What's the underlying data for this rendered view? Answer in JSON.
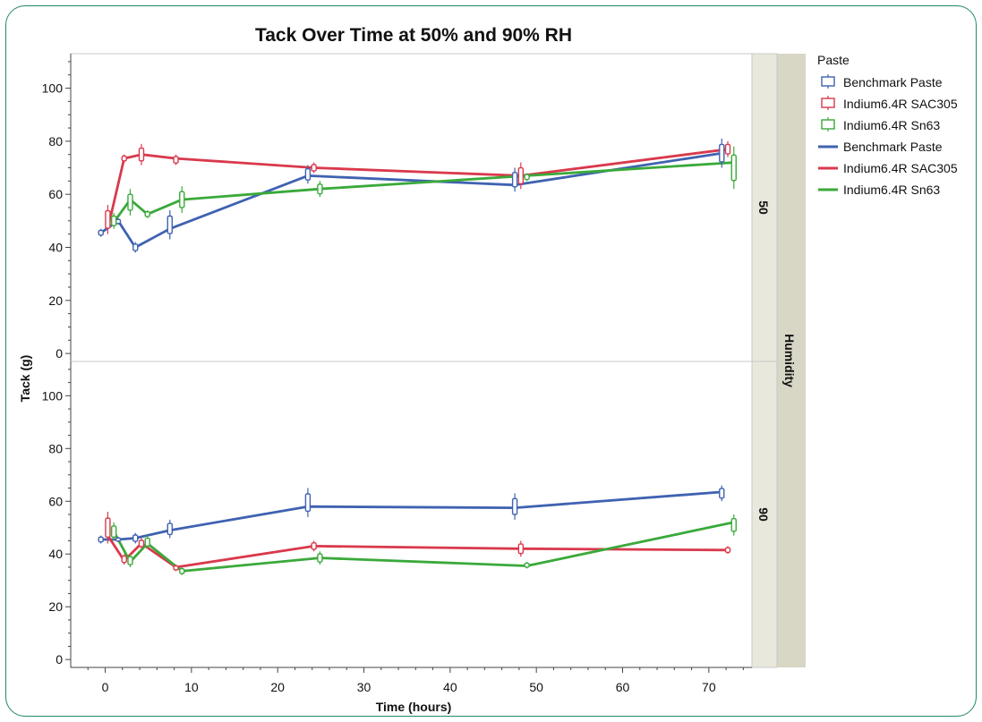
{
  "chart_data": {
    "type": "line",
    "title": "Tack Over Time at 50% and 90% RH",
    "xlabel": "Time (hours)",
    "ylabel": "Tack (g)",
    "xlim": [
      -4,
      75
    ],
    "ylim": [
      -3,
      113
    ],
    "x_ticks": [
      0,
      10,
      20,
      30,
      40,
      50,
      60,
      70
    ],
    "y_ticks": [
      0,
      20,
      40,
      60,
      80,
      100
    ],
    "facet_label": "Humidity",
    "legend": {
      "title": "Paste",
      "position": "right",
      "box_entries": [
        "Benchmark Paste",
        "Indium6.4R SAC305",
        "Indium6.4R Sn63"
      ],
      "line_entries": [
        "Benchmark Paste",
        "Indium6.4R SAC305",
        "Indium6.4R Sn63"
      ]
    },
    "colors": {
      "Benchmark Paste": "#3f62b1",
      "Indium6.4R SAC305": "#d9394c",
      "Indium6.4R Sn63": "#3aa93a"
    },
    "panels": [
      {
        "humidity": "50",
        "series": [
          {
            "name": "Benchmark Paste",
            "x": [
              -0.5,
              1.5,
              3.5,
              7.5,
              23.5,
              47.5,
              71.5
            ],
            "y": [
              45.5,
              50,
              40,
              47,
              67,
              63.5,
              75.5
            ],
            "boxes": [
              [
                -0.5,
                44,
                47
              ],
              [
                1.5,
                48.5,
                51
              ],
              [
                3.5,
                38,
                42
              ],
              [
                7.5,
                43,
                54
              ],
              [
                23.5,
                64,
                71
              ],
              [
                47.5,
                61,
                70
              ],
              [
                71.5,
                70,
                81
              ]
            ]
          },
          {
            "name": "Indium6.4R SAC305",
            "x": [
              0.3,
              2.2,
              4.2,
              8.2,
              24.2,
              48.2,
              72.2
            ],
            "y": [
              47,
              73.5,
              75,
              73.5,
              70,
              67,
              77
            ],
            "boxes": [
              [
                0.3,
                45,
                56
              ],
              [
                2.2,
                72,
                75
              ],
              [
                4.2,
                71,
                79
              ],
              [
                8.2,
                71,
                75
              ],
              [
                24.2,
                68,
                72
              ],
              [
                48.2,
                62,
                72
              ],
              [
                72.2,
                74,
                80
              ]
            ]
          },
          {
            "name": "Indium6.4R Sn63",
            "x": [
              1.0,
              2.9,
              4.9,
              8.9,
              24.9,
              48.9,
              72.9
            ],
            "y": [
              49.5,
              58,
              52.5,
              58,
              62,
              67,
              72
            ],
            "boxes": [
              [
                1.0,
                47,
                53
              ],
              [
                2.9,
                52,
                62
              ],
              [
                4.9,
                51,
                54
              ],
              [
                8.9,
                53,
                63
              ],
              [
                24.9,
                59,
                65
              ],
              [
                48.9,
                65,
                68
              ],
              [
                72.9,
                62,
                78
              ]
            ]
          }
        ]
      },
      {
        "humidity": "90",
        "series": [
          {
            "name": "Benchmark Paste",
            "x": [
              -0.5,
              1.5,
              3.5,
              7.5,
              23.5,
              47.5,
              71.5
            ],
            "y": [
              45.5,
              45.5,
              46,
              49,
              58,
              57.5,
              63.5
            ],
            "boxes": [
              [
                -0.5,
                44,
                47
              ],
              [
                1.5,
                44.5,
                46.5
              ],
              [
                3.5,
                44,
                48
              ],
              [
                7.5,
                46,
                53
              ],
              [
                23.5,
                54,
                65
              ],
              [
                47.5,
                53,
                63
              ],
              [
                71.5,
                60,
                66
              ]
            ]
          },
          {
            "name": "Indium6.4R SAC305",
            "x": [
              0.3,
              2.2,
              4.2,
              8.2,
              24.2,
              48.2,
              72.2
            ],
            "y": [
              47,
              37.5,
              44,
              35,
              43,
              42,
              41.5
            ],
            "boxes": [
              [
                0.3,
                44,
                56
              ],
              [
                2.2,
                36,
                40
              ],
              [
                4.2,
                42,
                46
              ],
              [
                8.2,
                33.5,
                36
              ],
              [
                24.2,
                41,
                45
              ],
              [
                48.2,
                39,
                45
              ],
              [
                72.2,
                40,
                43
              ]
            ]
          },
          {
            "name": "Indium6.4R Sn63",
            "x": [
              1.0,
              2.9,
              4.9,
              8.9,
              24.9,
              48.9,
              72.9
            ],
            "y": [
              48.5,
              37,
              44,
              33.5,
              38.5,
              35.5,
              52
            ],
            "boxes": [
              [
                1.0,
                45,
                52
              ],
              [
                2.9,
                35,
                40
              ],
              [
                4.9,
                42,
                47
              ],
              [
                8.9,
                32,
                35
              ],
              [
                24.9,
                36,
                41
              ],
              [
                48.9,
                34.5,
                37
              ],
              [
                72.9,
                47,
                55
              ]
            ]
          }
        ]
      }
    ]
  }
}
